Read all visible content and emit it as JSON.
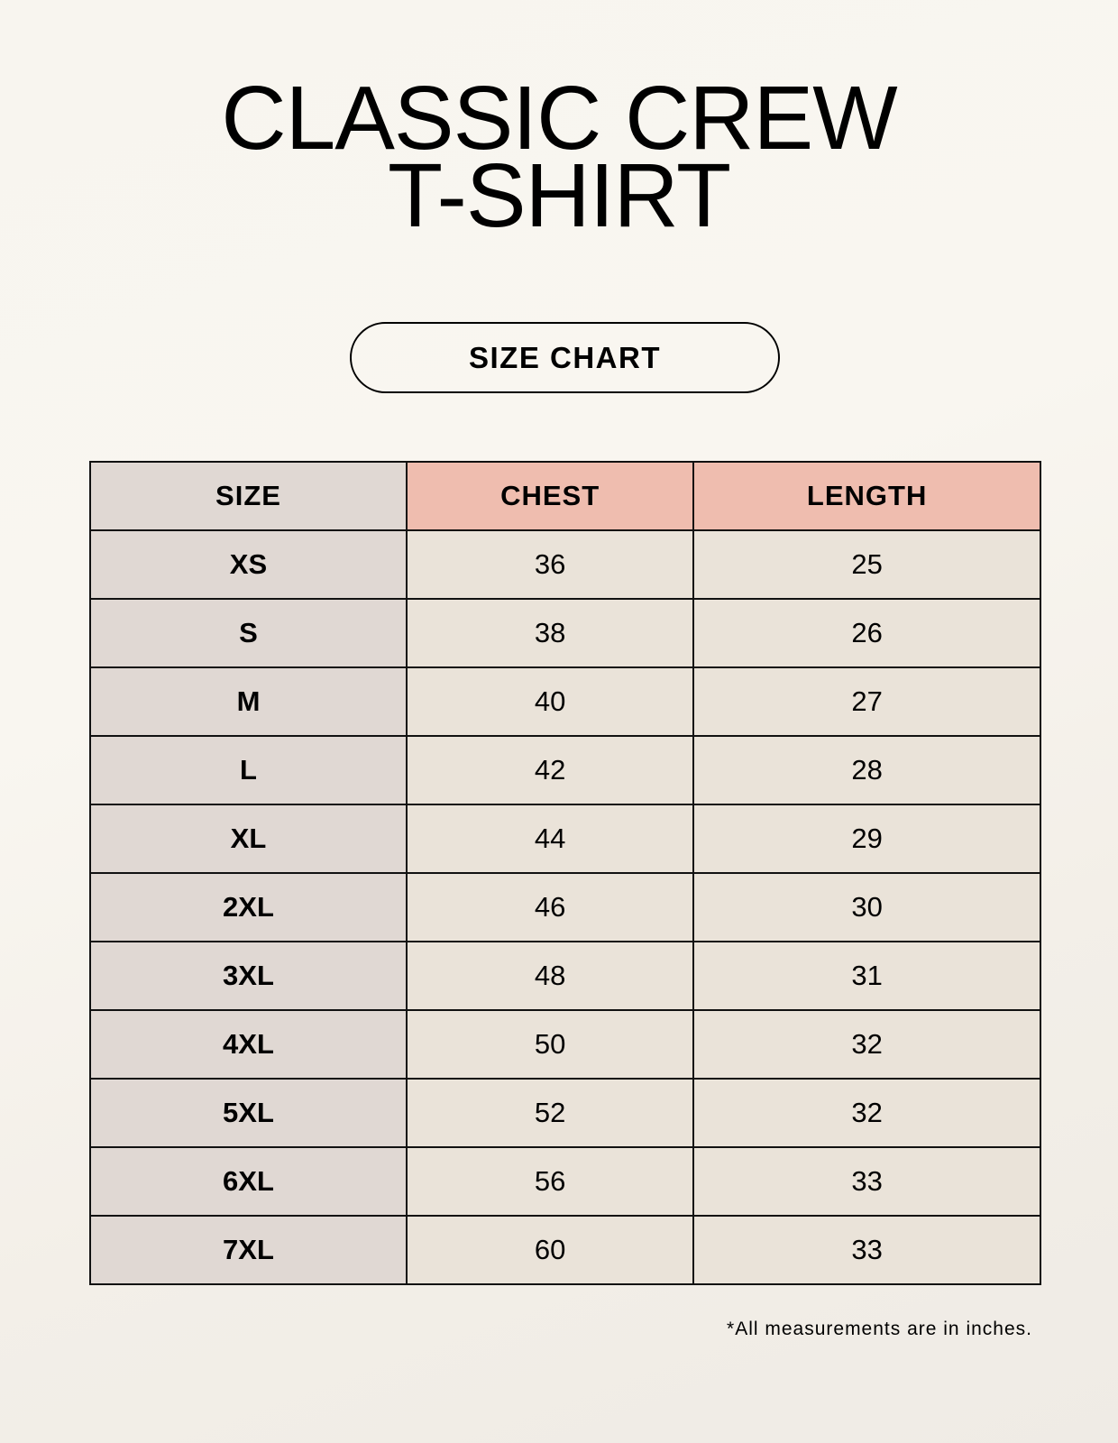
{
  "title_line1": "CLASSIC CREW",
  "title_line2": "T-SHIRT",
  "subtitle": "SIZE CHART",
  "colors": {
    "size_column": "#e0d8d3",
    "header_accent": "#efbdaf",
    "value_cells": "#eae3d9"
  },
  "table": {
    "headers": [
      "SIZE",
      "CHEST",
      "LENGTH"
    ],
    "rows": [
      [
        "XS",
        "36",
        "25"
      ],
      [
        "S",
        "38",
        "26"
      ],
      [
        "M",
        "40",
        "27"
      ],
      [
        "L",
        "42",
        "28"
      ],
      [
        "XL",
        "44",
        "29"
      ],
      [
        "2XL",
        "46",
        "30"
      ],
      [
        "3XL",
        "48",
        "31"
      ],
      [
        "4XL",
        "50",
        "32"
      ],
      [
        "5XL",
        "52",
        "32"
      ],
      [
        "6XL",
        "56",
        "33"
      ],
      [
        "7XL",
        "60",
        "33"
      ]
    ]
  },
  "footnote": "*All measurements are in inches."
}
